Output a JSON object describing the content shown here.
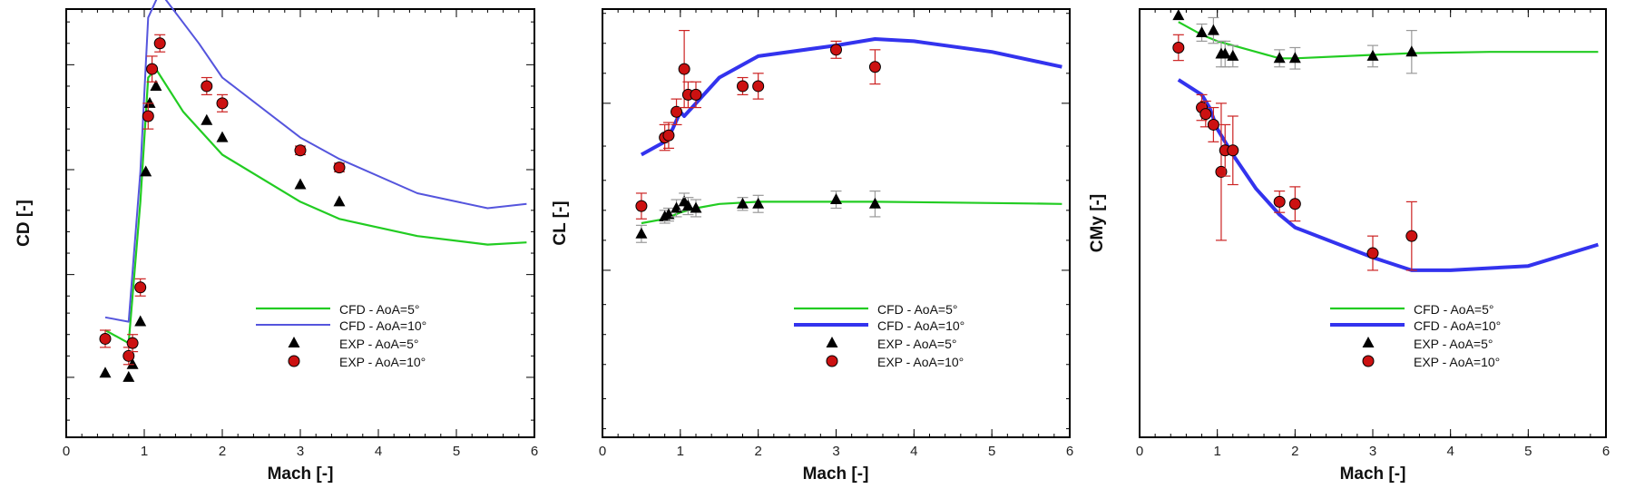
{
  "colors": {
    "cfd5": "#22cc22",
    "cfd10_panel1": "#5555dd",
    "cfd10": "#3333ee",
    "exp5": "#000000",
    "exp10_fill": "#cc1111",
    "exp10_err": "#cc2222",
    "exp5_err": "#999999"
  },
  "legend": {
    "cfd5": "CFD - AoA=5°",
    "cfd10": "CFD - AoA=10°",
    "exp5": "EXP - AoA=5°",
    "exp10": "EXP - AoA=10°"
  },
  "chart_data": [
    {
      "type": "line",
      "title": "",
      "xlabel": "Mach [-]",
      "ylabel": "CD [-]",
      "xlim": [
        0,
        6
      ],
      "ylim": [
        0,
        1
      ],
      "x_ticks": [
        0,
        1,
        2,
        3,
        4,
        5,
        6
      ],
      "y_major_ticks": [
        0.14,
        0.38,
        0.625,
        0.87
      ],
      "y_minor_ticks": [
        0.04,
        0.09,
        0.19,
        0.24,
        0.29,
        0.33,
        0.43,
        0.48,
        0.53,
        0.58,
        0.67,
        0.72,
        0.77,
        0.82,
        0.92,
        0.97
      ],
      "y_tick_labels": "unlabeled",
      "legend_position": "lower-right",
      "series": [
        {
          "name": "CFD - AoA=5°",
          "kind": "line",
          "x": [
            0.5,
            0.8,
            0.95,
            1.05,
            1.15,
            1.5,
            2.0,
            3.0,
            3.5,
            4.5,
            5.4,
            5.9
          ],
          "y": [
            0.25,
            0.22,
            0.55,
            0.84,
            0.86,
            0.76,
            0.66,
            0.55,
            0.51,
            0.47,
            0.45,
            0.455
          ]
        },
        {
          "name": "CFD - AoA=10°",
          "kind": "line",
          "x": [
            0.5,
            0.8,
            0.95,
            1.05,
            1.2,
            1.7,
            2.0,
            3.0,
            3.5,
            4.5,
            5.4,
            5.9
          ],
          "y": [
            0.28,
            0.27,
            0.62,
            0.98,
            1.04,
            0.92,
            0.84,
            0.7,
            0.65,
            0.57,
            0.535,
            0.545
          ]
        },
        {
          "name": "EXP - AoA=5°",
          "kind": "marker",
          "marker": "triangle",
          "x": [
            0.5,
            0.8,
            0.85,
            0.95,
            1.02,
            1.07,
            1.15,
            1.8,
            2.0,
            3.0,
            3.5
          ],
          "y": [
            0.15,
            0.14,
            0.17,
            0.27,
            0.62,
            0.78,
            0.82,
            0.74,
            0.7,
            0.59,
            0.55
          ],
          "err": [
            0,
            0,
            0,
            0,
            0,
            0,
            0,
            0,
            0,
            0,
            0
          ]
        },
        {
          "name": "EXP - AoA=10°",
          "kind": "marker",
          "marker": "circle",
          "x": [
            0.5,
            0.8,
            0.85,
            0.95,
            1.05,
            1.1,
            1.2,
            1.8,
            2.0,
            3.0,
            3.5
          ],
          "y": [
            0.23,
            0.19,
            0.22,
            0.35,
            0.75,
            0.86,
            0.92,
            0.82,
            0.78,
            0.67,
            0.63
          ],
          "err": [
            0.02,
            0.02,
            0.02,
            0.02,
            0.03,
            0.03,
            0.02,
            0.02,
            0.02,
            0.01,
            0.01
          ]
        }
      ]
    },
    {
      "type": "line",
      "title": "",
      "xlabel": "Mach [-]",
      "ylabel": "CL [-]",
      "xlim": [
        0,
        6
      ],
      "ylim": [
        0,
        1
      ],
      "x_ticks": [
        0,
        1,
        2,
        3,
        4,
        5,
        6
      ],
      "y_major_ticks": [
        0.39,
        0.78
      ],
      "y_minor_ticks": [
        0.02,
        0.09,
        0.17,
        0.24,
        0.31,
        0.46,
        0.53,
        0.6,
        0.68,
        0.85,
        0.92,
        0.99
      ],
      "y_tick_labels": "unlabeled",
      "legend_position": "lower-right",
      "series": [
        {
          "name": "CFD - AoA=5°",
          "kind": "line",
          "x": [
            0.5,
            0.8,
            1.0,
            1.2,
            1.5,
            2.0,
            2.5,
            3.0,
            3.5,
            4.5,
            5.5,
            5.9
          ],
          "y": [
            0.5,
            0.51,
            0.525,
            0.535,
            0.545,
            0.55,
            0.55,
            0.55,
            0.55,
            0.548,
            0.546,
            0.545
          ]
        },
        {
          "name": "CFD - AoA=10°",
          "kind": "line",
          "x": [
            0.5,
            0.8,
            0.9,
            1.0,
            1.05,
            1.15,
            1.5,
            2.0,
            3.0,
            3.5,
            4.0,
            5.0,
            5.9
          ],
          "y": [
            0.66,
            0.69,
            0.72,
            0.76,
            0.75,
            0.77,
            0.84,
            0.89,
            0.915,
            0.93,
            0.925,
            0.9,
            0.865
          ]
        },
        {
          "name": "EXP - AoA=5°",
          "kind": "marker",
          "marker": "triangle",
          "x": [
            0.5,
            0.8,
            0.85,
            0.95,
            1.05,
            1.1,
            1.2,
            1.8,
            2.0,
            3.0,
            3.5
          ],
          "y": [
            0.475,
            0.515,
            0.52,
            0.535,
            0.55,
            0.54,
            0.535,
            0.545,
            0.545,
            0.555,
            0.545
          ],
          "err": [
            0.02,
            0.015,
            0.015,
            0.02,
            0.02,
            0.02,
            0.02,
            0.015,
            0.02,
            0.02,
            0.03
          ]
        },
        {
          "name": "EXP - AoA=10°",
          "kind": "marker",
          "marker": "circle",
          "x": [
            0.5,
            0.8,
            0.85,
            0.95,
            1.05,
            1.1,
            1.2,
            1.8,
            2.0,
            3.0,
            3.5
          ],
          "y": [
            0.54,
            0.7,
            0.705,
            0.76,
            0.86,
            0.8,
            0.8,
            0.82,
            0.82,
            0.905,
            0.865
          ],
          "err": [
            0.03,
            0.03,
            0.03,
            0.03,
            0.09,
            0.03,
            0.03,
            0.02,
            0.03,
            0.02,
            0.04
          ]
        }
      ]
    },
    {
      "type": "line",
      "title": "",
      "xlabel": "Mach [-]",
      "ylabel": "CMy [-]",
      "xlim": [
        0,
        6
      ],
      "ylim": [
        0,
        1
      ],
      "x_ticks": [
        0,
        1,
        2,
        3,
        4,
        5,
        6
      ],
      "y_major_ticks": [],
      "y_minor_ticks": [],
      "y_tick_labels": "unlabeled",
      "legend_position": "lower-right",
      "series": [
        {
          "name": "CFD - AoA=5°",
          "kind": "line",
          "x": [
            0.5,
            0.8,
            1.0,
            1.2,
            1.5,
            1.8,
            2.0,
            3.0,
            3.5,
            4.5,
            5.0,
            5.9
          ],
          "y": [
            0.97,
            0.94,
            0.925,
            0.915,
            0.9,
            0.885,
            0.885,
            0.893,
            0.897,
            0.9,
            0.9,
            0.9
          ]
        },
        {
          "name": "CFD - AoA=10°",
          "kind": "line",
          "x": [
            0.5,
            0.8,
            0.9,
            1.0,
            1.2,
            1.5,
            1.8,
            2.0,
            3.0,
            3.5,
            4.0,
            5.0,
            5.9
          ],
          "y": [
            0.835,
            0.8,
            0.77,
            0.72,
            0.66,
            0.58,
            0.52,
            0.49,
            0.42,
            0.39,
            0.39,
            0.4,
            0.45
          ]
        },
        {
          "name": "EXP - AoA=5°",
          "kind": "marker",
          "marker": "triangle",
          "x": [
            0.5,
            0.8,
            0.95,
            1.05,
            1.1,
            1.2,
            1.8,
            2.0,
            3.0,
            3.5
          ],
          "y": [
            0.985,
            0.945,
            0.95,
            0.895,
            0.895,
            0.89,
            0.885,
            0.885,
            0.89,
            0.9
          ],
          "err": [
            0,
            0.02,
            0.03,
            0.03,
            0.03,
            0.025,
            0.02,
            0.025,
            0.025,
            0.05
          ]
        },
        {
          "name": "EXP - AoA=10°",
          "kind": "marker",
          "marker": "circle",
          "x": [
            0.5,
            0.8,
            0.85,
            0.95,
            1.05,
            1.1,
            1.2,
            1.8,
            2.0,
            3.0,
            3.5
          ],
          "y": [
            0.91,
            0.77,
            0.755,
            0.73,
            0.62,
            0.67,
            0.67,
            0.55,
            0.545,
            0.43,
            0.47
          ],
          "err": [
            0.03,
            0.03,
            0.03,
            0.04,
            0.16,
            0.06,
            0.08,
            0.025,
            0.04,
            0.04,
            0.08
          ]
        }
      ]
    }
  ]
}
